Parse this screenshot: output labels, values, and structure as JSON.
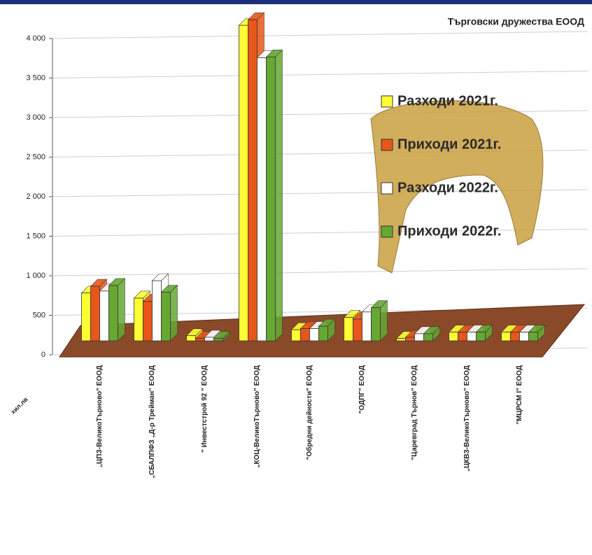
{
  "chart_data": {
    "type": "bar3d",
    "title": "Търговски дружества ЕООД",
    "y_label": "хил.лв",
    "categories": [
      "„ЦПЗ-ВеликоТърново\" ЕООД",
      "„СБАЛПФЗ „Д-р Трейман\" ЕООД",
      "\" Инвестстрой 92 \" ЕООД",
      "„КОЦ-ВеликоТърново\" ЕООД",
      "\"Обредни дейности\" ЕООД",
      "\"ОДПГ\" ЕООД",
      "\"Царевград Търнов\" ЕООД",
      "„ЦКВЗ-ВеликоТърново\" ЕООД",
      "\"МЦРСМ I\" ЕООД"
    ],
    "series": [
      {
        "name": "Разходи 2021г.",
        "color": "#ffff33",
        "values": [
          605,
          540,
          65,
          3990,
          140,
          295,
          30,
          110,
          110
        ]
      },
      {
        "name": "Приходи 2021г.",
        "color": "#e8561a",
        "values": [
          690,
          500,
          30,
          4060,
          155,
          275,
          45,
          110,
          110
        ]
      },
      {
        "name": "Разходи 2022г.",
        "color": "#ffffff",
        "values": [
          630,
          760,
          45,
          3580,
          155,
          365,
          90,
          110,
          110
        ]
      },
      {
        "name": "Приходи 2022г.",
        "color": "#66a832",
        "values": [
          700,
          615,
          30,
          3590,
          185,
          420,
          90,
          110,
          110
        ]
      }
    ],
    "ylim": [
      0,
      4000
    ],
    "yticks": [
      0,
      500,
      {
        "value": 1000,
        "label": "1 000"
      },
      {
        "value": 1500,
        "label": "1 500"
      },
      {
        "value": 2000,
        "label": "2 000"
      },
      {
        "value": 2500,
        "label": "2 500"
      },
      {
        "value": 3000,
        "label": "3 000"
      },
      {
        "value": 3500,
        "label": "3 500"
      },
      {
        "value": 4000,
        "label": "4 000"
      }
    ],
    "grid": true
  }
}
